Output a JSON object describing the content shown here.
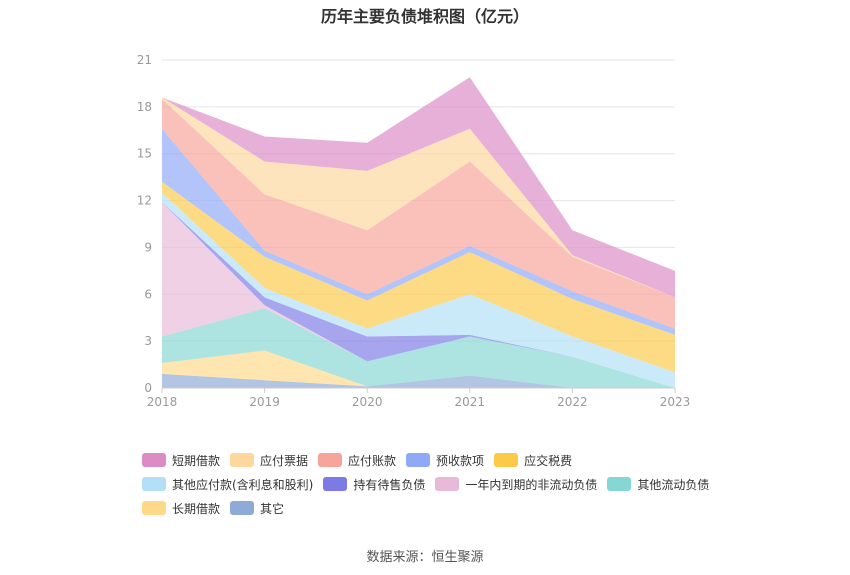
{
  "chart_data": {
    "type": "area",
    "stacked": true,
    "title": "历年主要负债堆积图（亿元）",
    "x": [
      "2018",
      "2019",
      "2020",
      "2021",
      "2022",
      "2023"
    ],
    "ylim": [
      0,
      21
    ],
    "yticks": [
      0,
      3,
      6,
      9,
      12,
      15,
      18,
      21
    ],
    "grid": true,
    "legend_position": "bottom",
    "series": [
      {
        "name": "其它",
        "color": "#8eaad6",
        "values": [
          0.9,
          0.5,
          0.1,
          0.8,
          0.0,
          0.0
        ]
      },
      {
        "name": "长期借款",
        "color": "#ffd98a",
        "values": [
          0.7,
          1.9,
          0.0,
          0.0,
          0.0,
          0.0
        ]
      },
      {
        "name": "其他流动负债",
        "color": "#86d6d3",
        "values": [
          1.7,
          2.7,
          1.6,
          2.5,
          2.0,
          0.0
        ]
      },
      {
        "name": "一年内到期的非流动负债",
        "color": "#e8b9d9",
        "values": [
          8.6,
          0.2,
          0.0,
          0.0,
          0.0,
          0.0
        ]
      },
      {
        "name": "持有待售负债",
        "color": "#7d7ae6",
        "values": [
          0.0,
          0.5,
          1.6,
          0.1,
          0.0,
          0.0
        ]
      },
      {
        "name": "其他应付款(含利息和股利)",
        "color": "#b3e0f6",
        "values": [
          0.6,
          0.6,
          0.5,
          2.6,
          1.3,
          1.0
        ]
      },
      {
        "name": "应交税费",
        "color": "#fcca49",
        "values": [
          0.7,
          2.0,
          1.8,
          2.7,
          2.4,
          2.4
        ]
      },
      {
        "name": "预收款项",
        "color": "#8fa8f7",
        "values": [
          3.4,
          0.4,
          0.4,
          0.4,
          0.5,
          0.4
        ]
      },
      {
        "name": "应付账款",
        "color": "#f7a49a",
        "values": [
          1.9,
          3.6,
          4.1,
          5.4,
          2.2,
          2.0
        ]
      },
      {
        "name": "应付票据",
        "color": "#fdd79c",
        "values": [
          0.1,
          2.1,
          3.8,
          2.1,
          0.1,
          0.0
        ]
      },
      {
        "name": "短期借款",
        "color": "#dc8bc5",
        "values": [
          0.0,
          1.6,
          1.8,
          3.3,
          1.6,
          1.7
        ]
      }
    ],
    "legend_order": [
      "短期借款",
      "应付票据",
      "应付账款",
      "预收款项",
      "应交税费",
      "其他应付款(含利息和股利)",
      "持有待售负债",
      "一年内到期的非流动负债",
      "其他流动负债",
      "长期借款",
      "其它"
    ]
  },
  "source": "数据来源：恒生聚源"
}
